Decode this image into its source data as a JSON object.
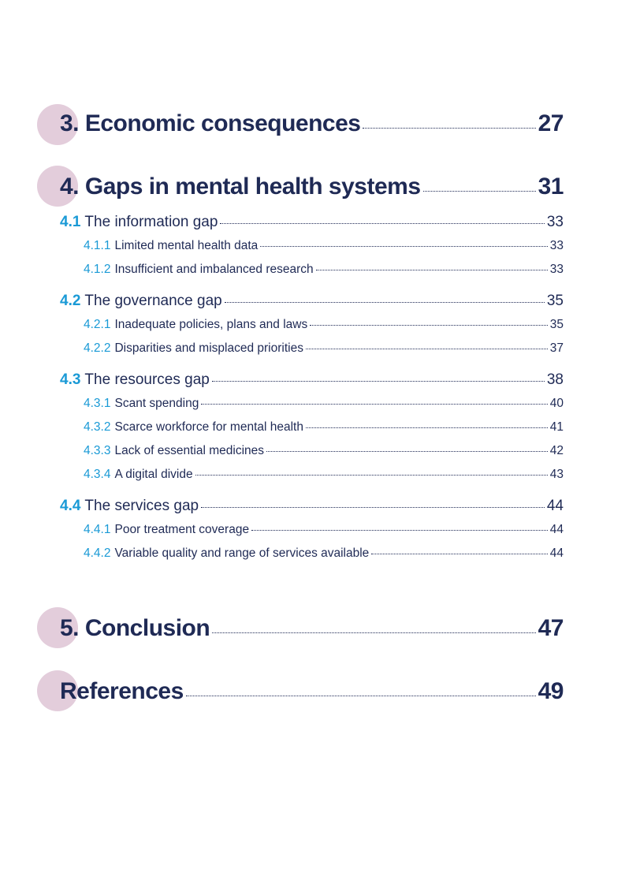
{
  "toc": {
    "ch3": {
      "title": "3. Economic consequences",
      "page": "27"
    },
    "ch4": {
      "title": "4. Gaps in mental health systems",
      "page": "31"
    },
    "s41": {
      "num": "4.1",
      "title": "The information gap",
      "page": "33"
    },
    "s411": {
      "num": "4.1.1",
      "title": "Limited mental health data",
      "page": "33"
    },
    "s412": {
      "num": "4.1.2",
      "title": "Insufficient and imbalanced research",
      "page": "33"
    },
    "s42": {
      "num": "4.2",
      "title": "The governance gap",
      "page": "35"
    },
    "s421": {
      "num": "4.2.1",
      "title": "Inadequate policies, plans and laws",
      "page": "35"
    },
    "s422": {
      "num": "4.2.2",
      "title": "Disparities and misplaced priorities",
      "page": "37"
    },
    "s43": {
      "num": "4.3",
      "title": "The resources gap",
      "page": "38"
    },
    "s431": {
      "num": "4.3.1",
      "title": "Scant spending",
      "page": "40"
    },
    "s432": {
      "num": "4.3.2",
      "title": "Scarce workforce for mental health",
      "page": "41"
    },
    "s433": {
      "num": "4.3.3",
      "title": "Lack of essential medicines",
      "page": "42"
    },
    "s434": {
      "num": "4.3.4",
      "title": "A digital divide",
      "page": "43"
    },
    "s44": {
      "num": "4.4",
      "title": "The services gap",
      "page": "44"
    },
    "s441": {
      "num": "4.4.1",
      "title": "Poor treatment coverage",
      "page": "44"
    },
    "s442": {
      "num": "4.4.2",
      "title": "Variable quality and range of services available",
      "page": "44"
    },
    "ch5": {
      "title": "5. Conclusion",
      "page": "47"
    },
    "refs": {
      "title": "References",
      "page": "49"
    }
  },
  "colors": {
    "navy": "#1f2a55",
    "accent": "#1a9ad6",
    "circle": "#e3cddb"
  }
}
